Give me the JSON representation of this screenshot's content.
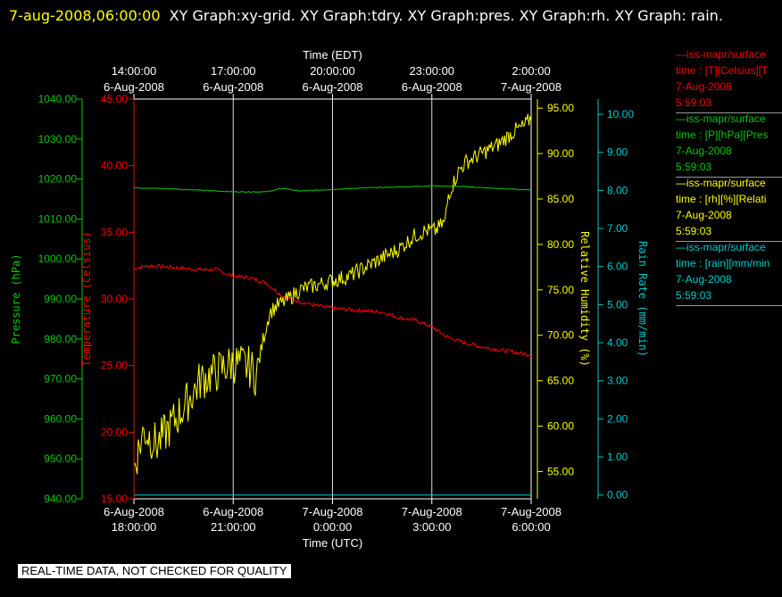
{
  "title": {
    "timestamp": "7-aug-2008,06:00:00",
    "text": "XY Graph:xy-grid.  XY Graph:tdry.  XY Graph:pres.  XY Graph:rh.  XY Graph: rain."
  },
  "quality_notice": "REAL-TIME DATA, NOT CHECKED FOR QUALITY",
  "colors": {
    "background": "#000000",
    "temperature": "#ff0000",
    "pressure": "#00cc00",
    "humidity": "#ffff00",
    "rain": "#00cccc",
    "grid": "#ffffff"
  },
  "legend": [
    {
      "line1": "—iss-mapr/surface",
      "line2": "time : [T][Celsius][T",
      "line3": "7-Aug-2008",
      "line4": "5:59:03",
      "color": "#ff0000"
    },
    {
      "line1": "—iss-mapr/surface",
      "line2": "time : [P][hPa][Pres",
      "line3": "7-Aug-2008",
      "line4": "5:59:03",
      "color": "#00cc00"
    },
    {
      "line1": "—iss-mapr/surface",
      "line2": "time : [rh][%][Relati",
      "line3": "7-Aug-2008",
      "line4": "5:59:03",
      "color": "#ffff00"
    },
    {
      "line1": "—iss-mapr/surface",
      "line2": "time : [rain][mm/min",
      "line3": "7-Aug-2008",
      "line4": "5:59:03",
      "color": "#00cccc"
    }
  ],
  "chart_data": {
    "type": "line",
    "xlabel_top": "Time (EDT)",
    "xlabel_bottom": "Time (UTC)",
    "x_range_utc": [
      "2008-08-06 18:00:00",
      "2008-08-07 06:00:00"
    ],
    "x_ticks_utc": [
      {
        "line1": "6-Aug-2008",
        "line2": "18:00:00"
      },
      {
        "line1": "6-Aug-2008",
        "line2": "21:00:00"
      },
      {
        "line1": "7-Aug-2008",
        "line2": "0:00:00"
      },
      {
        "line1": "7-Aug-2008",
        "line2": "3:00:00"
      },
      {
        "line1": "7-Aug-2008",
        "line2": "6:00:00"
      }
    ],
    "x_ticks_edt": [
      {
        "line1": "14:00:00",
        "line2": "6-Aug-2008"
      },
      {
        "line1": "17:00:00",
        "line2": "6-Aug-2008"
      },
      {
        "line1": "20:00:00",
        "line2": "6-Aug-2008"
      },
      {
        "line1": "23:00:00",
        "line2": "6-Aug-2008"
      },
      {
        "line1": "2:00:00",
        "line2": "7-Aug-2008"
      }
    ],
    "grid": true,
    "axes": {
      "pressure": {
        "label": "Pressure (hPa)",
        "ylim": [
          940,
          1040
        ],
        "ticks": [
          "940.00",
          "950.00",
          "960.00",
          "970.00",
          "980.00",
          "990.00",
          "1000.00",
          "1010.00",
          "1020.00",
          "1030.00",
          "1040.00"
        ],
        "color": "#00cc00"
      },
      "temperature": {
        "label": "Temperature (Celsius)",
        "ylim": [
          15,
          45
        ],
        "ticks": [
          "15.00",
          "20.00",
          "25.00",
          "30.00",
          "35.00",
          "40.00",
          "45.00"
        ],
        "color": "#ff0000"
      },
      "humidity": {
        "label": "Relative Humidity (%)",
        "ylim": [
          52,
          96
        ],
        "ticks": [
          "55.00",
          "60.00",
          "65.00",
          "70.00",
          "75.00",
          "80.00",
          "85.00",
          "90.00",
          "95.00"
        ],
        "color": "#ffff00"
      },
      "rain": {
        "label": "Rain Rate (mm/min)",
        "ylim": [
          -0.1,
          10.4
        ],
        "ticks": [
          "0.00",
          "1.00",
          "2.00",
          "3.00",
          "4.00",
          "5.00",
          "6.00",
          "7.00",
          "8.00",
          "9.00",
          "10.00"
        ],
        "color": "#00cccc"
      }
    },
    "series": [
      {
        "name": "iss-mapr/surface T [Celsius]",
        "axis": "temperature",
        "color": "#ff0000",
        "x_hours": [
          0,
          0.5,
          1,
          1.5,
          2,
          2.5,
          3,
          3.5,
          4,
          4.5,
          5,
          5.5,
          6,
          6.5,
          7,
          7.5,
          8,
          8.5,
          9,
          9.5,
          10,
          10.5,
          11,
          11.5,
          12
        ],
        "y": [
          32.3,
          32.5,
          32.4,
          32.3,
          32.2,
          32.2,
          31.7,
          31.6,
          31.2,
          30.2,
          29.8,
          29.5,
          29.3,
          29.2,
          29.1,
          29.0,
          28.6,
          28.4,
          27.9,
          27.1,
          26.7,
          26.4,
          26.2,
          26.0,
          25.8
        ],
        "noise": 0.15
      },
      {
        "name": "iss-mapr/surface P [hPa]",
        "axis": "pressure",
        "color": "#00cc00",
        "x_hours": [
          0,
          1,
          2,
          3,
          4,
          4.5,
          5,
          6,
          7,
          8,
          9,
          10,
          11,
          12
        ],
        "y": [
          1017.8,
          1017.6,
          1017.2,
          1016.8,
          1016.8,
          1017.7,
          1017.0,
          1017.4,
          1017.8,
          1018.0,
          1018.3,
          1018.1,
          1017.6,
          1017.3
        ],
        "noise": 0.1
      },
      {
        "name": "iss-mapr/surface rh [%]",
        "axis": "humidity",
        "color": "#ffff00",
        "x_hours": [
          0,
          0.3,
          0.7,
          1,
          1.5,
          2,
          2.5,
          3,
          3.5,
          3.7,
          3.9,
          4.1,
          4.3,
          4.6,
          5,
          5.5,
          6,
          6.5,
          7,
          7.5,
          8,
          8.5,
          8.8,
          9.1,
          9.4,
          9.5,
          9.8,
          10,
          10.5,
          11,
          11.5,
          11.8,
          12
        ],
        "y": [
          55.5,
          59.5,
          58.0,
          59.5,
          62.0,
          65.0,
          66.0,
          67.0,
          66.5,
          65.5,
          69.5,
          72.5,
          73.2,
          73.8,
          75.0,
          75.5,
          76.0,
          76.5,
          77.5,
          78.5,
          79.5,
          81.0,
          81.5,
          81.5,
          82.5,
          85.5,
          88.0,
          89.0,
          90.0,
          91.0,
          92.5,
          93.0,
          94.0
        ],
        "noise": 0.9
      },
      {
        "name": "iss-mapr/surface rain [mm/min]",
        "axis": "rain",
        "color": "#00cccc",
        "x_hours": [
          0,
          12
        ],
        "y": [
          0,
          0
        ],
        "noise": 0
      }
    ]
  }
}
